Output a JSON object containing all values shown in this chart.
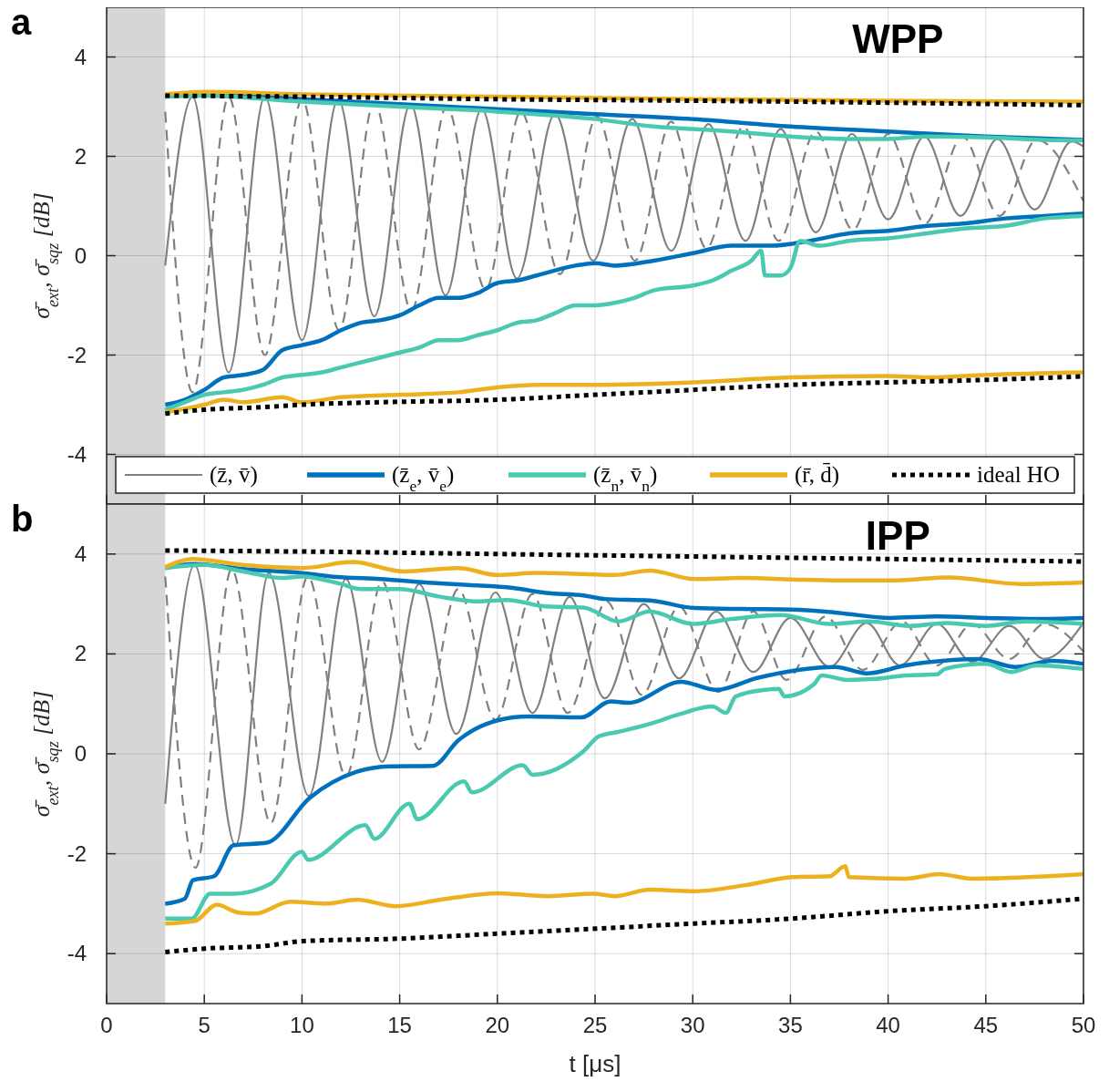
{
  "chart_data": [
    {
      "type": "line",
      "title": "WPP",
      "annotations": [
        "a"
      ],
      "ylabel": "σ̄$_{ext}$, σ̄$_{sqz}$ [dB]",
      "xlim": [
        0,
        50
      ],
      "ylim": [
        -5,
        5
      ],
      "xticks": [
        0,
        5,
        10,
        15,
        20,
        25,
        30,
        35,
        40,
        45,
        50
      ],
      "yticks": [
        -4,
        -2,
        0,
        2,
        4
      ],
      "tick_labels": "y",
      "grid": true,
      "legend": "bottom",
      "bands": [
        {
          "axis": "x",
          "from": 0,
          "to": 3,
          "color": "#d6d6d6"
        }
      ],
      "series": [
        {
          "name": "(z̄, v̄)",
          "color": "#808080",
          "line_style": "solid",
          "x": [
            3,
            4.4,
            6.25,
            8.1,
            10,
            11.85,
            13.7,
            15.55,
            17.35,
            19.2,
            21,
            22.95,
            24.9,
            26.9,
            28.9,
            30.8,
            32.7,
            34.5,
            36.3,
            38.15,
            40,
            41.85,
            43.7,
            45.6,
            47.5,
            49.4,
            50
          ],
          "values": [
            -0.2,
            3.2,
            -2.35,
            3.2,
            -1.7,
            3.15,
            -1.22,
            3.05,
            -0.8,
            2.95,
            -0.46,
            2.85,
            -0.1,
            2.75,
            0.1,
            2.65,
            0.3,
            2.55,
            0.47,
            2.45,
            0.73,
            2.4,
            0.8,
            2.35,
            0.93,
            2.3,
            2.2
          ]
        },
        {
          "color": "#808080",
          "line_style": "dashed",
          "x": [
            3,
            4.4,
            6.25,
            8.1,
            10,
            11.9,
            13.7,
            15.6,
            17.4,
            19.4,
            21.2,
            23.2,
            25.1,
            27.05,
            28.9,
            30.7,
            32.6,
            34.4,
            36.3,
            38.2,
            40,
            41.9,
            43.8,
            45.7,
            47.6,
            50
          ],
          "values": [
            2.9,
            -2.75,
            3.2,
            -2,
            3.15,
            -1.5,
            3.1,
            -1.1,
            3,
            -0.68,
            2.9,
            -0.37,
            2.8,
            -0.1,
            2.7,
            0.15,
            2.6,
            0.3,
            2.5,
            0.52,
            2.45,
            0.65,
            2.4,
            0.8,
            2.33,
            1.1
          ]
        },
        {
          "name": "(z̄$_{e}$, v̄$_{e}$)",
          "color": "#0072bd",
          "line_style": "solid",
          "x": [
            3,
            5,
            10,
            15,
            20,
            25,
            30,
            35,
            40,
            45,
            50
          ],
          "values": [
            3.2,
            3.25,
            3.15,
            3.05,
            2.95,
            2.85,
            2.75,
            2.6,
            2.5,
            2.4,
            2.33
          ]
        },
        {
          "color": "#0072bd",
          "line_style": "solid",
          "x": [
            3,
            4,
            5,
            6,
            7,
            8,
            9,
            10,
            11,
            12,
            13,
            14,
            15,
            16,
            17,
            18,
            19,
            20,
            21,
            22,
            24,
            25,
            26,
            28,
            30,
            32,
            34,
            36,
            38,
            40,
            42,
            44,
            46,
            48,
            50
          ],
          "values": [
            -3,
            -2.9,
            -2.7,
            -2.45,
            -2.4,
            -2.3,
            -1.9,
            -1.8,
            -1.7,
            -1.5,
            -1.35,
            -1.3,
            -1.2,
            -1,
            -0.85,
            -0.85,
            -0.75,
            -0.55,
            -0.5,
            -0.4,
            -0.2,
            -0.15,
            -0.2,
            -0.1,
            0.05,
            0.2,
            0.2,
            0.3,
            0.45,
            0.5,
            0.6,
            0.65,
            0.75,
            0.8,
            0.85
          ]
        },
        {
          "name": "(z̄$_{n}$, v̄$_{n}$)",
          "color": "#48c9b0",
          "line_style": "solid",
          "x": [
            3,
            5,
            10,
            15,
            20,
            25,
            28,
            30,
            32,
            35,
            38,
            40,
            42,
            45,
            48,
            50
          ],
          "values": [
            3.2,
            3.22,
            3.1,
            3,
            2.9,
            2.75,
            2.6,
            2.55,
            2.5,
            2.4,
            2.35,
            2.35,
            2.4,
            2.38,
            2.33,
            2.32
          ]
        },
        {
          "color": "#48c9b0",
          "line_style": "solid",
          "x": [
            3,
            4,
            5,
            6,
            7,
            8,
            9,
            10,
            11,
            12,
            13,
            14,
            15,
            16,
            17,
            18,
            19,
            20,
            21,
            22,
            23,
            24,
            25,
            26,
            27,
            28,
            30,
            31,
            32,
            33,
            33.5,
            33.7,
            34.5,
            35,
            35.5,
            36.5,
            38,
            40,
            42,
            44,
            46,
            48,
            50
          ],
          "values": [
            -3.1,
            -2.95,
            -2.8,
            -2.75,
            -2.7,
            -2.6,
            -2.45,
            -2.4,
            -2.35,
            -2.25,
            -2.15,
            -2.05,
            -1.95,
            -1.85,
            -1.7,
            -1.7,
            -1.6,
            -1.5,
            -1.35,
            -1.3,
            -1.15,
            -1,
            -1,
            -0.95,
            -0.85,
            -0.7,
            -0.6,
            -0.5,
            -0.3,
            -0.1,
            0.1,
            -0.4,
            -0.4,
            -0.25,
            0.3,
            0.2,
            0.3,
            0.35,
            0.45,
            0.55,
            0.6,
            0.75,
            0.8
          ]
        },
        {
          "name": "(r̄, d̄)",
          "color": "#edb120",
          "line_style": "solid",
          "x": [
            3,
            5,
            10,
            20,
            30,
            40,
            50
          ],
          "values": [
            3.25,
            3.3,
            3.25,
            3.2,
            3.15,
            3.12,
            3.1
          ]
        },
        {
          "color": "#edb120",
          "line_style": "solid",
          "x": [
            3,
            5,
            6,
            7,
            9,
            10,
            12,
            15,
            18,
            20,
            22,
            25,
            30,
            35,
            40,
            42,
            45,
            50
          ],
          "values": [
            -3.15,
            -3,
            -2.9,
            -2.95,
            -2.85,
            -2.95,
            -2.85,
            -2.8,
            -2.75,
            -2.65,
            -2.6,
            -2.6,
            -2.55,
            -2.45,
            -2.42,
            -2.45,
            -2.4,
            -2.35
          ]
        },
        {
          "name": "ideal HO",
          "color": "#000000",
          "line_style": "dotted",
          "x": [
            3,
            10,
            20,
            30,
            40,
            50
          ],
          "values": [
            3.22,
            3.2,
            3.15,
            3.12,
            3.08,
            3.03
          ]
        },
        {
          "color": "#000000",
          "line_style": "dotted",
          "x": [
            3,
            5,
            8,
            10,
            14,
            20,
            25,
            30,
            35,
            40,
            45,
            50
          ],
          "values": [
            -3.18,
            -3.1,
            -3.05,
            -3,
            -2.95,
            -2.9,
            -2.8,
            -2.7,
            -2.6,
            -2.55,
            -2.5,
            -2.43
          ]
        }
      ]
    },
    {
      "type": "line",
      "title": "IPP",
      "annotations": [
        "b"
      ],
      "xlabel": "t [μs]",
      "ylabel": "σ̄$_{ext}$, σ̄$_{sqz}$ [dB]",
      "xlim": [
        0,
        50
      ],
      "ylim": [
        -5,
        5
      ],
      "xticks": [
        0,
        5,
        10,
        15,
        20,
        25,
        30,
        35,
        40,
        45,
        50
      ],
      "yticks": [
        -4,
        -2,
        0,
        2,
        4
      ],
      "grid": true,
      "bands": [
        {
          "axis": "x",
          "from": 0,
          "to": 3,
          "color": "#d6d6d6"
        }
      ],
      "series": [
        {
          "color": "#808080",
          "line_style": "solid",
          "x": [
            3,
            4.5,
            6.6,
            8.3,
            10.35,
            12.25,
            14.1,
            16,
            17.9,
            19.9,
            21.8,
            23.7,
            25.5,
            27.5,
            29.3,
            31.2,
            33.1,
            35,
            37,
            38.9,
            40.6,
            42.5,
            44.3,
            46.2,
            48,
            50
          ],
          "values": [
            -1,
            3.78,
            -1.83,
            3.62,
            -0.84,
            3.5,
            -0.16,
            3.4,
            0.4,
            3.23,
            0.82,
            3.14,
            1.11,
            3,
            1.51,
            2.85,
            1.64,
            2.72,
            1.74,
            2.62,
            1.77,
            2.6,
            1.84,
            2.56,
            1.9,
            2.62
          ]
        },
        {
          "color": "#808080",
          "line_style": "dashed",
          "x": [
            3,
            4.55,
            6.4,
            8.4,
            10.3,
            12.25,
            14.1,
            16,
            18,
            19.9,
            21.8,
            23.6,
            25.6,
            27.4,
            29.3,
            31.3,
            33.1,
            34.8,
            36.8,
            38.7,
            40.7,
            42.5,
            44.3,
            46.2,
            48,
            50
          ],
          "values": [
            3.55,
            -2.28,
            3.7,
            -1.39,
            3.55,
            -0.45,
            3.45,
            0.09,
            3.3,
            0.68,
            3.2,
            0.82,
            3.05,
            1.18,
            2.95,
            1.24,
            2.85,
            1.48,
            2.75,
            1.68,
            2.65,
            1.77,
            2.6,
            1.9,
            2.6,
            2.05
          ]
        },
        {
          "color": "#0072bd",
          "line_style": "solid",
          "x": [
            3,
            4.5,
            7,
            10,
            11.8,
            14,
            16.7,
            18.5,
            20.8,
            22.5,
            24.4,
            25.5,
            27.8,
            30.1,
            32.5,
            35.1,
            37.5,
            40.1,
            42.5,
            45.1,
            47.5,
            50
          ],
          "values": [
            3.72,
            3.8,
            3.7,
            3.62,
            3.54,
            3.5,
            3.42,
            3.38,
            3.32,
            3.22,
            3.17,
            3.1,
            3.07,
            2.92,
            2.9,
            2.89,
            2.82,
            2.72,
            2.75,
            2.72,
            2.7,
            2.72
          ]
        },
        {
          "color": "#0072bd",
          "line_style": "solid",
          "x": [
            3,
            4,
            4.42,
            5.5,
            6.5,
            8.19,
            10.4,
            12.8,
            14.5,
            16.7,
            18,
            20.8,
            21.6,
            24.3,
            25.8,
            26.7,
            29.4,
            31.2,
            33.3,
            37.3,
            38.9,
            40.9,
            44.6,
            46.5,
            48.4,
            50
          ],
          "values": [
            -3,
            -2.9,
            -2.53,
            -2.45,
            -1.83,
            -1.78,
            -0.88,
            -0.36,
            -0.25,
            -0.24,
            0.27,
            0.73,
            0.75,
            0.73,
            1.05,
            1.02,
            1.44,
            1.28,
            1.52,
            1.74,
            1.61,
            1.77,
            1.9,
            1.74,
            1.86,
            1.8
          ]
        },
        {
          "color": "#48c9b0",
          "line_style": "solid",
          "x": [
            3,
            5,
            7,
            9,
            10,
            12,
            13,
            15,
            17,
            19,
            20.5,
            22.5,
            24.4,
            26.2,
            27.8,
            30,
            32,
            34.5,
            37,
            39,
            41.1,
            43,
            45,
            47,
            50
          ],
          "values": [
            3.72,
            3.78,
            3.65,
            3.52,
            3.55,
            3.4,
            3.3,
            3.3,
            3.15,
            3.05,
            3.08,
            2.95,
            2.93,
            2.65,
            2.85,
            2.6,
            2.7,
            2.78,
            2.6,
            2.65,
            2.56,
            2.62,
            2.56,
            2.65,
            2.6
          ]
        },
        {
          "color": "#48c9b0",
          "line_style": "solid",
          "x": [
            3,
            4.35,
            5.3,
            6.5,
            8.4,
            10,
            10.3,
            13.25,
            13.7,
            15.5,
            15.9,
            18.3,
            18.7,
            21.3,
            21.8,
            24.4,
            25.2,
            26.2,
            27.8,
            29.3,
            31,
            31.7,
            32.2,
            33.7,
            34.4,
            34.7,
            36.2,
            36.6,
            37.9,
            39.3,
            40.9,
            42.5,
            42.9,
            45,
            46.3,
            47.6,
            50
          ],
          "values": [
            -3.3,
            -3.3,
            -2.8,
            -2.8,
            -2.6,
            -1.96,
            -2.12,
            -1.43,
            -1.7,
            -1,
            -1.31,
            -0.55,
            -0.77,
            -0.23,
            -0.42,
            0.05,
            0.35,
            0.44,
            0.6,
            0.79,
            0.95,
            0.82,
            1.15,
            1.28,
            1.3,
            1.15,
            1.39,
            1.57,
            1.48,
            1.5,
            1.57,
            1.59,
            1.7,
            1.8,
            1.64,
            1.77,
            1.7
          ]
        },
        {
          "color": "#edb120",
          "line_style": "solid",
          "x": [
            3,
            4.4,
            7,
            10,
            12.6,
            15.2,
            18,
            20,
            22,
            24.4,
            26,
            27.8,
            30.1,
            32.5,
            35.1,
            37.5,
            40.1,
            43.1,
            46.8,
            50
          ],
          "values": [
            3.74,
            3.9,
            3.78,
            3.72,
            3.84,
            3.65,
            3.72,
            3.58,
            3.62,
            3.6,
            3.58,
            3.67,
            3.5,
            3.52,
            3.49,
            3.47,
            3.47,
            3.53,
            3.4,
            3.43
          ]
        },
        {
          "color": "#edb120",
          "line_style": "solid",
          "x": [
            3,
            4.5,
            5.65,
            6.75,
            7.6,
            9.4,
            11.2,
            12.8,
            14.8,
            17.1,
            20,
            22.6,
            24.9,
            26,
            27.8,
            30.1,
            32.7,
            35.1,
            37,
            37.8,
            38,
            40.9,
            42.6,
            44.3,
            50
          ],
          "values": [
            -3.4,
            -3.35,
            -3.02,
            -3.18,
            -3.2,
            -2.96,
            -3,
            -2.92,
            -3.05,
            -2.92,
            -2.79,
            -2.85,
            -2.8,
            -2.85,
            -2.72,
            -2.75,
            -2.63,
            -2.47,
            -2.45,
            -2.25,
            -2.47,
            -2.5,
            -2.41,
            -2.5,
            -2.41
          ]
        },
        {
          "color": "#000000",
          "line_style": "dotted",
          "x": [
            3,
            10,
            20,
            30,
            40,
            50
          ],
          "values": [
            4.07,
            4.05,
            4,
            3.95,
            3.9,
            3.85
          ]
        },
        {
          "color": "#000000",
          "line_style": "dotted",
          "x": [
            3,
            5,
            8,
            10,
            15,
            20,
            25,
            30,
            35,
            40,
            45,
            50
          ],
          "values": [
            -3.97,
            -3.9,
            -3.85,
            -3.75,
            -3.7,
            -3.6,
            -3.5,
            -3.4,
            -3.3,
            -3.15,
            -3.05,
            -2.9
          ]
        }
      ]
    }
  ]
}
